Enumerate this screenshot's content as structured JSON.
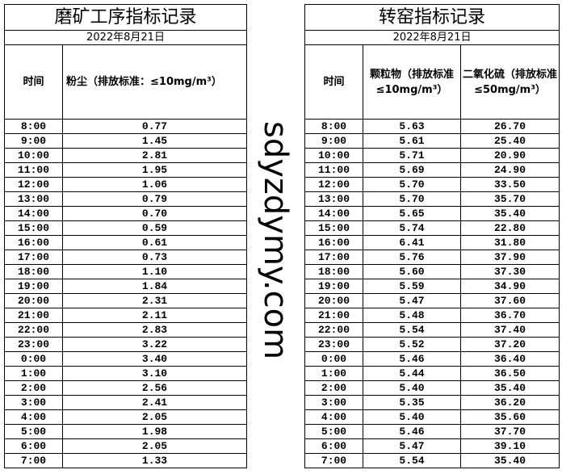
{
  "left": {
    "title": "磨矿工序指标记录",
    "date": "2022年8月21日",
    "col_time": "时间",
    "col_dust": "粉尘（排放标准：≤10mg/m³）",
    "rows": [
      [
        "8:00",
        "0.77"
      ],
      [
        "9:00",
        "1.45"
      ],
      [
        "10:00",
        "2.81"
      ],
      [
        "11:00",
        "1.95"
      ],
      [
        "12:00",
        "1.06"
      ],
      [
        "13:00",
        "0.79"
      ],
      [
        "14:00",
        "0.70"
      ],
      [
        "15:00",
        "0.59"
      ],
      [
        "16:00",
        "0.61"
      ],
      [
        "17:00",
        "0.73"
      ],
      [
        "18:00",
        "1.10"
      ],
      [
        "19:00",
        "1.84"
      ],
      [
        "20:00",
        "2.31"
      ],
      [
        "21:00",
        "2.11"
      ],
      [
        "22:00",
        "2.83"
      ],
      [
        "23:00",
        "3.22"
      ],
      [
        "0:00",
        "3.40"
      ],
      [
        "1:00",
        "3.10"
      ],
      [
        "2:00",
        "2.56"
      ],
      [
        "3:00",
        "2.41"
      ],
      [
        "4:00",
        "2.05"
      ],
      [
        "5:00",
        "1.98"
      ],
      [
        "6:00",
        "2.05"
      ],
      [
        "7:00",
        "1.33"
      ]
    ]
  },
  "right": {
    "title": "转窑指标记录",
    "date": "2022年8月21日",
    "col_time": "时间",
    "col_pm": "颗粒物（排放标准≤10mg/m³）",
    "col_so2": "二氧化硫（排放标准≤50mg/m³）",
    "rows": [
      [
        "8:00",
        "5.63",
        "26.70"
      ],
      [
        "9:00",
        "5.61",
        "25.40"
      ],
      [
        "10:00",
        "5.71",
        "20.90"
      ],
      [
        "11:00",
        "5.69",
        "24.90"
      ],
      [
        "12:00",
        "5.70",
        "33.50"
      ],
      [
        "13:00",
        "5.70",
        "35.70"
      ],
      [
        "14:00",
        "5.65",
        "35.40"
      ],
      [
        "15:00",
        "5.74",
        "22.80"
      ],
      [
        "16:00",
        "6.41",
        "31.80"
      ],
      [
        "17:00",
        "5.76",
        "37.90"
      ],
      [
        "18:00",
        "5.60",
        "37.30"
      ],
      [
        "19:00",
        "5.59",
        "34.90"
      ],
      [
        "20:00",
        "5.47",
        "37.60"
      ],
      [
        "21:00",
        "5.48",
        "36.70"
      ],
      [
        "22:00",
        "5.54",
        "37.40"
      ],
      [
        "23:00",
        "5.52",
        "37.20"
      ],
      [
        "0:00",
        "5.46",
        "36.40"
      ],
      [
        "1:00",
        "5.44",
        "36.50"
      ],
      [
        "2:00",
        "5.40",
        "35.40"
      ],
      [
        "3:00",
        "5.35",
        "36.20"
      ],
      [
        "4:00",
        "5.40",
        "35.60"
      ],
      [
        "5:00",
        "5.46",
        "37.70"
      ],
      [
        "6:00",
        "5.47",
        "39.10"
      ],
      [
        "7:00",
        "5.54",
        "35.40"
      ]
    ]
  },
  "watermark": "sdyzdymy.com"
}
